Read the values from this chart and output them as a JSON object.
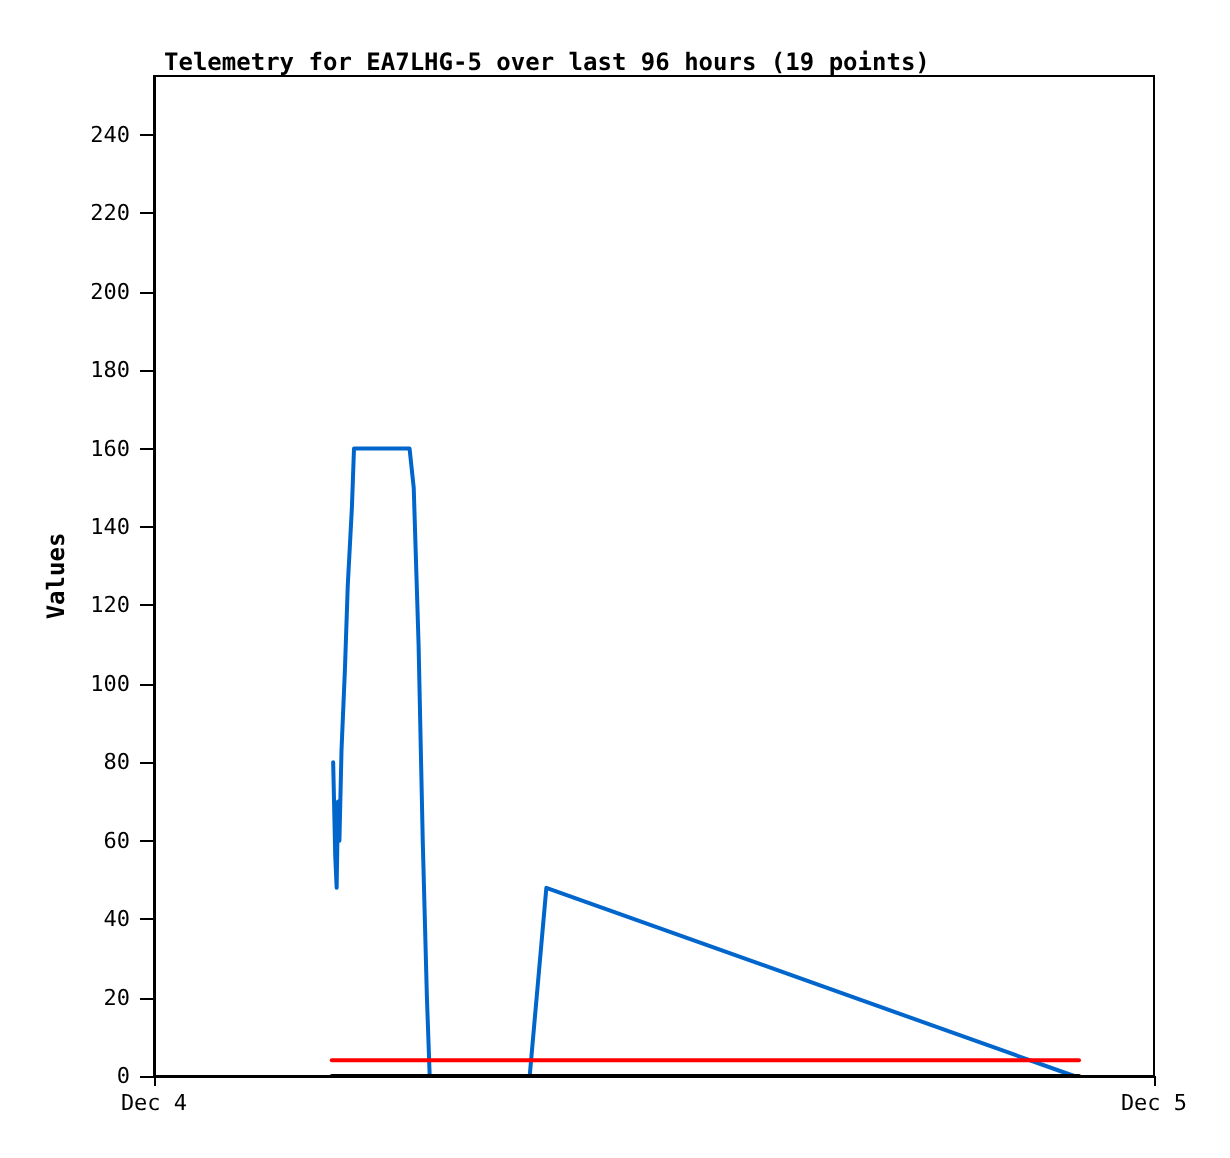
{
  "chart_data": {
    "type": "line",
    "title": "Telemetry for EA7LHG-5 over last 96 hours (19 points)",
    "ylabel": "Values",
    "xlim": [
      "--12-04",
      "--12-05"
    ],
    "xticks": [
      {
        "value": "--12-04",
        "label": "Dec 4"
      },
      {
        "value": "--12-05",
        "label": "Dec 5"
      }
    ],
    "ylim": [
      0,
      255
    ],
    "yticks": [
      0,
      20,
      40,
      60,
      80,
      100,
      120,
      140,
      160,
      180,
      200,
      220,
      240
    ],
    "grid": false,
    "marker": "none",
    "line_style": "solid",
    "series": [
      {
        "color": "#0066cc",
        "x": [
          "--12-04T04:18",
          "--12-04T04:21",
          "--12-04T04:23",
          "--12-04T04:25",
          "--12-04T04:27",
          "--12-04T04:30",
          "--12-04T04:35",
          "--12-04T04:39",
          "--12-04T04:45",
          "--12-04T04:48",
          "--12-04T06:08",
          "--12-04T06:14",
          "--12-04T06:21",
          "--12-04T06:27",
          "--12-04T06:33",
          "--12-04T06:37",
          "--12-04T09:01",
          "--12-04T09:25",
          "--12-04T22:05"
        ],
        "values": [
          80,
          56,
          48,
          70,
          60,
          83,
          104,
          125,
          145,
          160,
          160,
          150,
          110,
          60,
          20,
          0,
          0,
          48,
          0
        ]
      },
      {
        "color": "#ff0000",
        "x": [
          "--12-04T04:16",
          "--12-04T22:12"
        ],
        "values": [
          4,
          4
        ]
      },
      {
        "color": "#000000",
        "x": [
          "--12-04T04:16",
          "--12-04T22:12"
        ],
        "values": [
          0,
          0
        ]
      }
    ]
  }
}
